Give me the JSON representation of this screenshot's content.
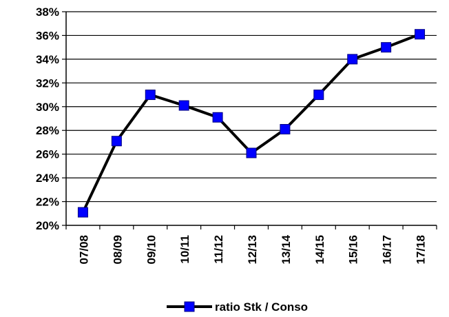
{
  "chart_data": {
    "type": "line",
    "categories": [
      "07/08",
      "08/09",
      "09/10",
      "10/11",
      "11/12",
      "12/13",
      "13/14",
      "14/15",
      "15/16",
      "16/17",
      "17/18"
    ],
    "series": [
      {
        "name": "ratio Stk / Conso",
        "values": [
          21.1,
          27.1,
          31.0,
          30.1,
          29.1,
          26.1,
          28.1,
          31.0,
          34.0,
          35.0,
          36.1
        ]
      }
    ],
    "y_ticks": [
      "20%",
      "22%",
      "24%",
      "26%",
      "28%",
      "30%",
      "32%",
      "34%",
      "36%",
      "38%"
    ],
    "ylim": [
      20,
      38
    ],
    "y_unit": "%",
    "grid": "horizontal",
    "legend_position": "bottom-center",
    "colors": {
      "line": "#000000",
      "marker": "#0000ff",
      "grid": "#000000",
      "axis": "#000000"
    },
    "title": "",
    "xlabel": "",
    "ylabel": ""
  }
}
